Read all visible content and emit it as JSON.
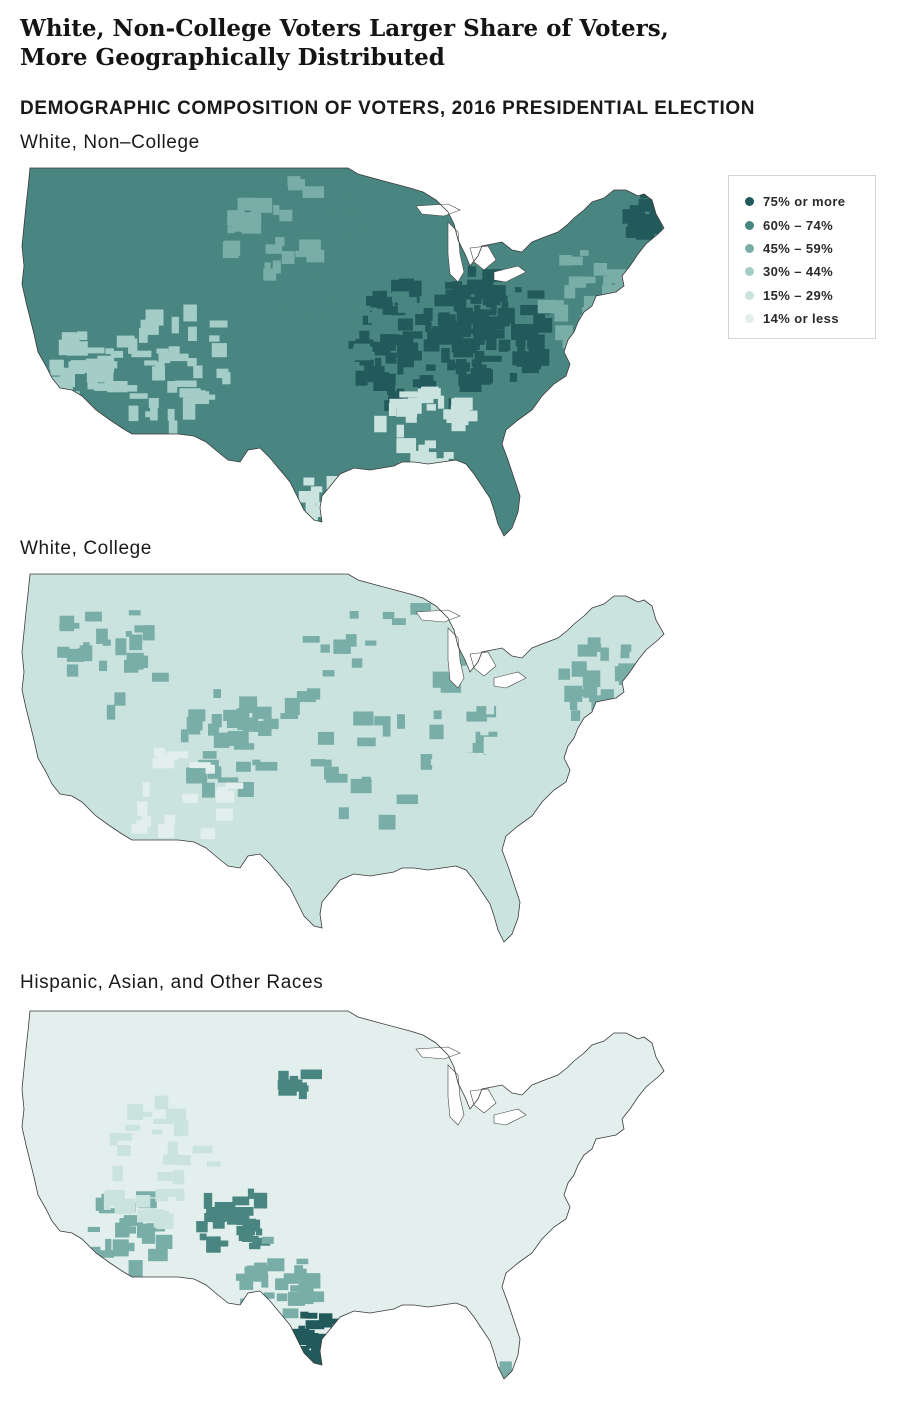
{
  "title_line1": "White, Non-College Voters Larger Share of Voters,",
  "title_line2": "More Geographically Distributed",
  "subtitle": "DEMOGRAPHIC COMPOSITION OF VOTERS, 2016 PRESIDENTIAL ELECTION",
  "legend": [
    {
      "label": "75% or more",
      "color": "#22595a"
    },
    {
      "label": "60% – 74%",
      "color": "#4a8681"
    },
    {
      "label": "45% – 59%",
      "color": "#79ada7"
    },
    {
      "label": "30% – 44%",
      "color": "#a5cdc7"
    },
    {
      "label": "15% – 29%",
      "color": "#cbe3df"
    },
    {
      "label": "14% or less",
      "color": "#e2efed"
    }
  ],
  "maps": [
    {
      "label": "White, Non–College",
      "base_color": "#4a8681",
      "dominant_bin": "60% – 74%"
    },
    {
      "label": "White, College",
      "base_color": "#cbe3df",
      "dominant_bin": "15% – 29%"
    },
    {
      "label": "Hispanic, Asian, and Other Races",
      "base_color": "#e2efed",
      "dominant_bin": "14% or less"
    }
  ]
}
